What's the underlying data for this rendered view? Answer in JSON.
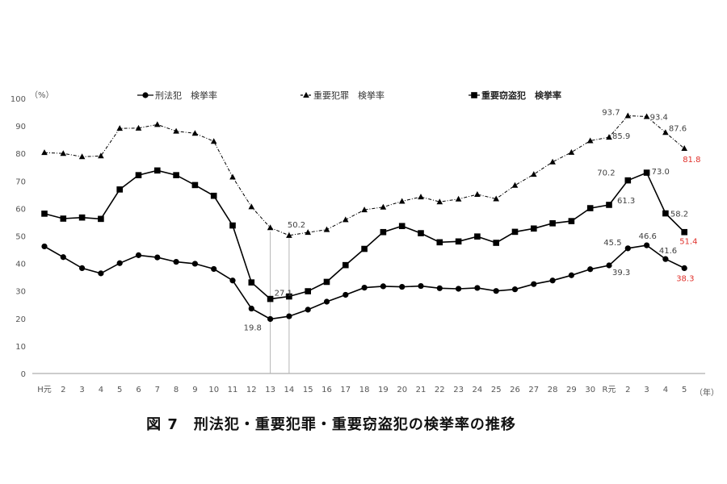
{
  "caption": "図 7　刑法犯・重要犯罪・重要窃盗犯の検挙率の推移",
  "chart_data": {
    "type": "line",
    "title": "",
    "y_unit": "（%）",
    "x_unit": "（年）",
    "ylim": [
      0,
      100
    ],
    "yticks": [
      0,
      10,
      20,
      30,
      40,
      50,
      60,
      70,
      80,
      90,
      100
    ],
    "grid": false,
    "legend_position": "top",
    "categories": [
      "H元",
      "2",
      "3",
      "4",
      "5",
      "6",
      "7",
      "8",
      "9",
      "10",
      "11",
      "12",
      "13",
      "14",
      "15",
      "16",
      "17",
      "18",
      "19",
      "20",
      "21",
      "22",
      "23",
      "24",
      "25",
      "26",
      "27",
      "28",
      "29",
      "30",
      "R元",
      "2",
      "3",
      "4",
      "5"
    ],
    "series": [
      {
        "name": "刑法犯　検挙率",
        "marker": "circle",
        "line_style": "solid",
        "color": "#000000",
        "values": [
          46.2,
          42.3,
          38.3,
          36.4,
          40.1,
          43.0,
          42.2,
          40.6,
          39.9,
          38.0,
          33.8,
          23.6,
          19.8,
          20.8,
          23.2,
          26.1,
          28.6,
          31.2,
          31.7,
          31.5,
          31.8,
          31.0,
          30.8,
          31.1,
          30.0,
          30.6,
          32.5,
          33.8,
          35.7,
          37.9,
          39.3,
          45.5,
          46.6,
          41.6,
          38.3
        ]
      },
      {
        "name": "重要犯罪　検挙率",
        "marker": "triangle",
        "line_style": "dashdot",
        "color": "#000000",
        "values": [
          80.3,
          80.0,
          78.8,
          79.1,
          89.1,
          89.2,
          90.5,
          88.1,
          87.3,
          84.4,
          71.4,
          60.6,
          53.0,
          50.2,
          51.3,
          52.3,
          55.9,
          59.5,
          60.5,
          62.6,
          64.2,
          62.4,
          63.4,
          65.1,
          63.5,
          68.4,
          72.4,
          76.9,
          80.4,
          84.6,
          85.9,
          93.7,
          93.4,
          87.6,
          81.8
        ]
      },
      {
        "name": "重要窃盗犯　検挙率",
        "marker": "square",
        "line_style": "solid",
        "color": "#000000",
        "values": [
          58.1,
          56.3,
          56.7,
          56.2,
          66.9,
          72.1,
          73.8,
          72.1,
          68.5,
          64.6,
          53.8,
          33.1,
          27.1,
          28.0,
          29.9,
          33.3,
          39.4,
          45.3,
          51.4,
          53.6,
          51.0,
          47.7,
          48.0,
          49.8,
          47.5,
          51.5,
          52.7,
          54.6,
          55.4,
          60.1,
          61.3,
          70.2,
          73.0,
          58.2,
          51.4
        ]
      }
    ],
    "data_labels": [
      {
        "series": 0,
        "index": 12,
        "text": "19.8",
        "color": "#404040"
      },
      {
        "series": 0,
        "index": 30,
        "text": "39.3",
        "color": "#404040"
      },
      {
        "series": 0,
        "index": 31,
        "text": "45.5",
        "color": "#404040"
      },
      {
        "series": 0,
        "index": 32,
        "text": "46.6",
        "color": "#404040"
      },
      {
        "series": 0,
        "index": 33,
        "text": "41.6",
        "color": "#404040"
      },
      {
        "series": 0,
        "index": 34,
        "text": "38.3",
        "color": "#e0302a"
      },
      {
        "series": 1,
        "index": 13,
        "text": "50.2",
        "color": "#404040"
      },
      {
        "series": 1,
        "index": 30,
        "text": "85.9",
        "color": "#404040"
      },
      {
        "series": 1,
        "index": 31,
        "text": "93.7",
        "color": "#404040"
      },
      {
        "series": 1,
        "index": 32,
        "text": "93.4",
        "color": "#404040"
      },
      {
        "series": 1,
        "index": 33,
        "text": "87.6",
        "color": "#404040"
      },
      {
        "series": 1,
        "index": 34,
        "text": "81.8",
        "color": "#e0302a"
      },
      {
        "series": 2,
        "index": 12,
        "text": "27.1",
        "color": "#404040"
      },
      {
        "series": 2,
        "index": 30,
        "text": "61.3",
        "color": "#404040"
      },
      {
        "series": 2,
        "index": 31,
        "text": "70.2",
        "color": "#404040"
      },
      {
        "series": 2,
        "index": 32,
        "text": "73.0",
        "color": "#404040"
      },
      {
        "series": 2,
        "index": 33,
        "text": "58.2",
        "color": "#404040"
      },
      {
        "series": 2,
        "index": 34,
        "text": "51.4",
        "color": "#e0302a"
      }
    ],
    "guide_lines_at": [
      "13",
      "14"
    ]
  }
}
